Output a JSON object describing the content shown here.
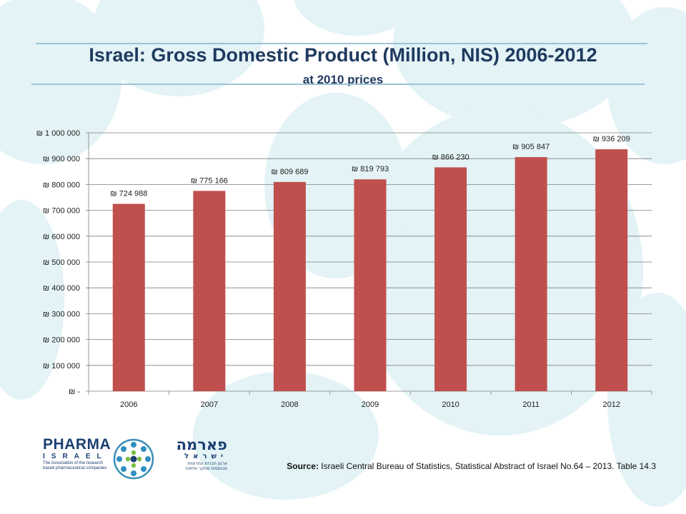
{
  "title": "Israel: Gross Domestic Product (Million, NIS) 2006-2012",
  "subtitle": "at 2010 prices",
  "source": {
    "label": "Source:",
    "text": "Israeli Central Bureau of Statistics, Statistical Abstract of Israel No.64 – 2013. Table 14.3"
  },
  "logo": {
    "wordmark_en": "PHARMA",
    "wordmark_en_2": "ISRAEL",
    "tagline_en_1": "The Association of the research",
    "tagline_en_2": "based pharmaceutical companies",
    "wordmark_he": "פארמה",
    "wordmark_he_2": "ישראל",
    "tagline_he_1": "ארגון חברות התרופות",
    "tagline_he_2": "מבוססות מחקר ופיתוח",
    "icon": "network-circle-icon"
  },
  "colors": {
    "bar": "#c0504d",
    "title": "#1f3a5f",
    "accent_line": "#9cc3d6",
    "background_blob": "#e3f3f6",
    "gridline": "#7f7f7f"
  },
  "chart_data": {
    "type": "bar",
    "categories": [
      "2006",
      "2007",
      "2008",
      "2009",
      "2010",
      "2011",
      "2012"
    ],
    "values": [
      724988,
      775166,
      809689,
      819793,
      866230,
      905847,
      936209
    ],
    "data_labels": [
      "₪ 724 988",
      "₪ 775 166",
      "₪ 809 689",
      "₪ 819 793",
      "₪ 866 230",
      "₪ 905 847",
      "₪ 936 209"
    ],
    "yticks": [
      0,
      100000,
      200000,
      300000,
      400000,
      500000,
      600000,
      700000,
      800000,
      900000,
      1000000
    ],
    "ytick_labels": [
      "₪  -",
      "₪ 100 000",
      "₪ 200 000",
      "₪ 300 000",
      "₪ 400 000",
      "₪ 500 000",
      "₪ 600 000",
      "₪ 700 000",
      "₪ 800 000",
      "₪ 900 000",
      "₪ 1 000 000"
    ],
    "ylim": [
      0,
      1000000
    ],
    "grid": true,
    "legend": "none",
    "title": "",
    "xlabel": "",
    "ylabel": ""
  }
}
